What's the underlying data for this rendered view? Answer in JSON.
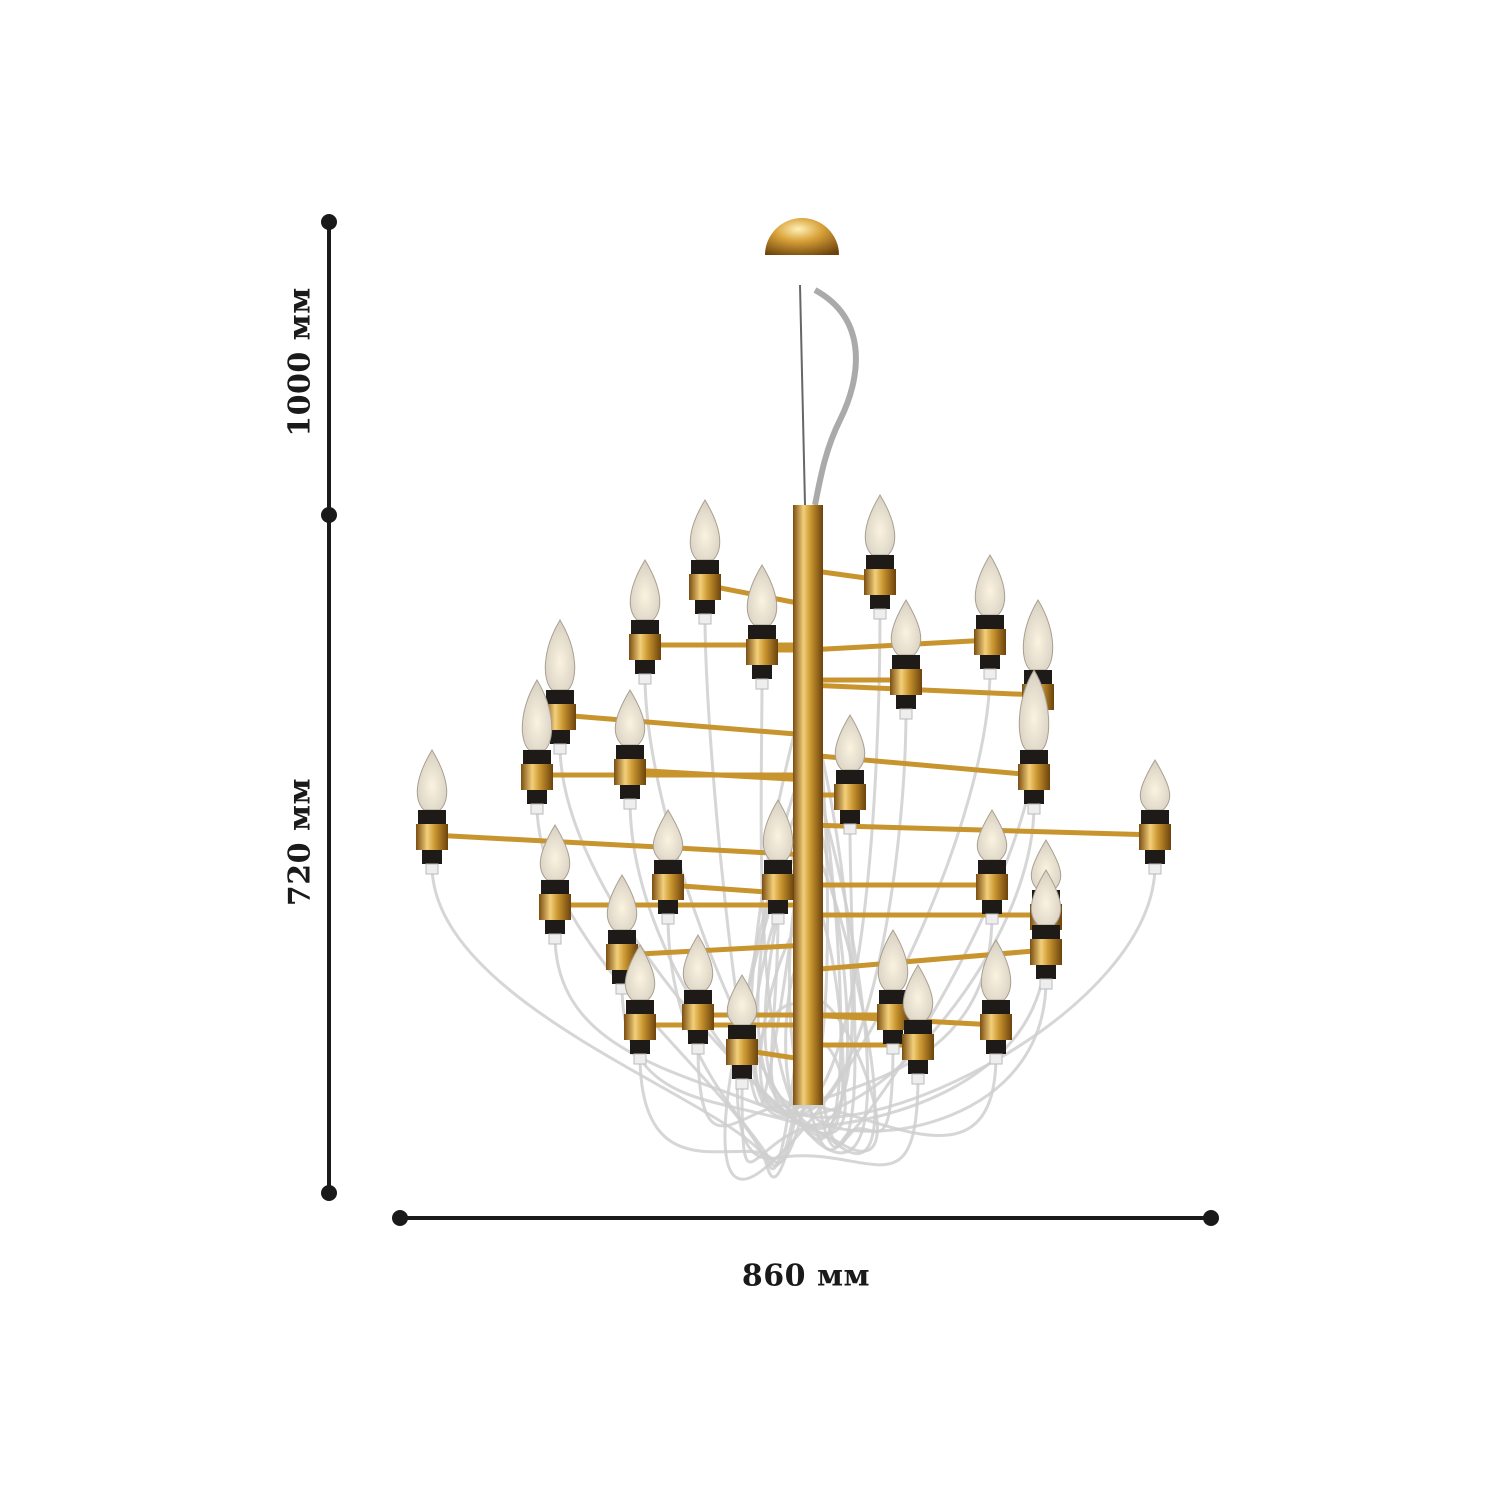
{
  "dimensions": {
    "cable_length": "1000 мм",
    "body_height": "720 мм",
    "width": "860 мм"
  },
  "colors": {
    "dimension_line": "#1a1a1a",
    "gold": "#c8942e",
    "socket": "#1e1a17",
    "cable": "#c9c9c9"
  },
  "product": {
    "type": "chandelier",
    "finish": "gold",
    "bulb_icon": "candle-bulb"
  }
}
